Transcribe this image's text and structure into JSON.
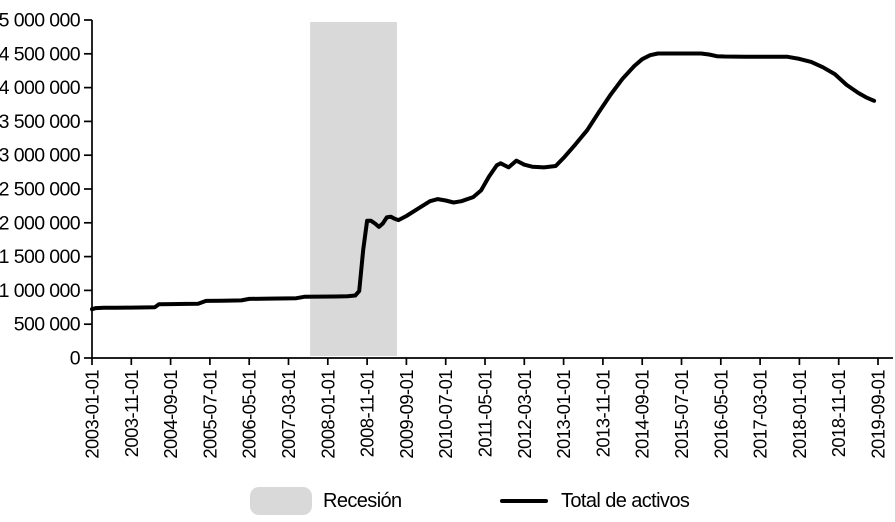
{
  "chart_data": {
    "type": "line",
    "title": "",
    "xlabel": "",
    "ylabel": "",
    "grid": "off",
    "legend_position": "bottom",
    "x_axis": {
      "tick_labels": [
        "2003-01-01",
        "2003-11-01",
        "2004-09-01",
        "2005-07-01",
        "2006-05-01",
        "2007-03-01",
        "2008-01-01",
        "2008-11-01",
        "2009-09-01",
        "2010-07-01",
        "2011-05-01",
        "2012-03-01",
        "2013-01-01",
        "2013-11-01",
        "2014-09-01",
        "2015-07-01",
        "2016-05-01",
        "2017-03-01",
        "2018-01-01",
        "2018-11-01",
        "2019-09-01"
      ],
      "months_between_ticks": 10,
      "range_months": [
        0,
        200
      ]
    },
    "y_axis": {
      "ticks": [
        0,
        500000,
        1000000,
        1500000,
        2000000,
        2500000,
        3000000,
        3500000,
        4000000,
        4500000,
        5000000
      ],
      "tick_labels": [
        "0",
        "500 000",
        "1 000 000",
        "1 500 000",
        "2 000 000",
        "2 500 000",
        "3 000 000",
        "3 500 000",
        "4 000 000",
        "4 500 000",
        "5 000 000"
      ],
      "ylim": [
        0,
        5000000
      ]
    },
    "recession_band": {
      "label": "Recesión",
      "color": "#d9d9d9",
      "start_month_index": 55.5,
      "end_month_index": 77.6,
      "approx_start": "2007-08",
      "approx_end": "2009-06"
    },
    "series": [
      {
        "name": "Total de activos",
        "color": "#000000",
        "points_format": [
          "month_index_from_2003-01",
          "value"
        ],
        "points": [
          [
            0,
            722000
          ],
          [
            1,
            738000
          ],
          [
            3,
            742000
          ],
          [
            6,
            744000
          ],
          [
            10,
            746000
          ],
          [
            14,
            748000
          ],
          [
            16,
            752000
          ],
          [
            17,
            795000
          ],
          [
            20,
            798000
          ],
          [
            24,
            800000
          ],
          [
            27,
            803000
          ],
          [
            29,
            845000
          ],
          [
            33,
            848000
          ],
          [
            38,
            852000
          ],
          [
            40,
            875000
          ],
          [
            45,
            878000
          ],
          [
            50,
            881000
          ],
          [
            52,
            885000
          ],
          [
            54,
            905000
          ],
          [
            58,
            908000
          ],
          [
            62,
            910000
          ],
          [
            65,
            912000
          ],
          [
            67,
            925000
          ],
          [
            68,
            990000
          ],
          [
            69,
            1600000
          ],
          [
            70,
            2030000
          ],
          [
            71,
            2030000
          ],
          [
            72,
            1990000
          ],
          [
            73,
            1940000
          ],
          [
            74,
            1990000
          ],
          [
            75,
            2080000
          ],
          [
            76,
            2090000
          ],
          [
            77,
            2060000
          ],
          [
            78,
            2040000
          ],
          [
            80,
            2100000
          ],
          [
            83,
            2210000
          ],
          [
            86,
            2320000
          ],
          [
            88,
            2350000
          ],
          [
            90,
            2330000
          ],
          [
            92,
            2300000
          ],
          [
            94,
            2320000
          ],
          [
            97,
            2380000
          ],
          [
            99,
            2480000
          ],
          [
            101,
            2680000
          ],
          [
            103,
            2850000
          ],
          [
            104,
            2880000
          ],
          [
            106,
            2820000
          ],
          [
            108,
            2920000
          ],
          [
            110,
            2860000
          ],
          [
            112,
            2830000
          ],
          [
            115,
            2820000
          ],
          [
            118,
            2840000
          ],
          [
            120,
            2960000
          ],
          [
            123,
            3160000
          ],
          [
            126,
            3370000
          ],
          [
            129,
            3640000
          ],
          [
            132,
            3900000
          ],
          [
            135,
            4130000
          ],
          [
            138,
            4320000
          ],
          [
            140,
            4420000
          ],
          [
            142,
            4480000
          ],
          [
            144,
            4505000
          ],
          [
            150,
            4505000
          ],
          [
            155,
            4505000
          ],
          [
            157,
            4490000
          ],
          [
            159,
            4465000
          ],
          [
            161,
            4460000
          ],
          [
            166,
            4455000
          ],
          [
            172,
            4455000
          ],
          [
            177,
            4455000
          ],
          [
            180,
            4425000
          ],
          [
            183,
            4380000
          ],
          [
            186,
            4300000
          ],
          [
            189,
            4200000
          ],
          [
            192,
            4040000
          ],
          [
            195,
            3920000
          ],
          [
            197,
            3855000
          ],
          [
            199,
            3805000
          ]
        ]
      }
    ]
  },
  "legend": {
    "recession_label": "Recesión",
    "series_label": "Total de activos"
  }
}
